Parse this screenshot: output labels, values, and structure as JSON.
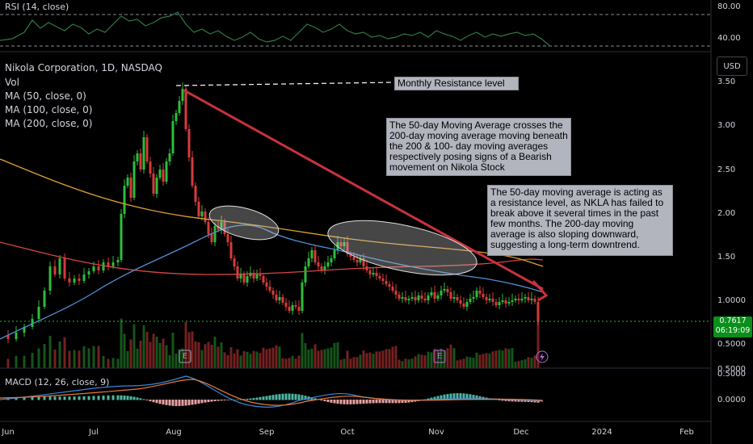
{
  "rsi": {
    "label": "RSI (14, close)",
    "ticks": [
      "80.00",
      "40.00"
    ]
  },
  "main": {
    "title": "Nikola Corporation, 1D, NASDAQ",
    "legend": [
      "Vol",
      "MA (50, close, 0)",
      "MA (100, close, 0)",
      "MA (200, close, 0)"
    ],
    "price_ticks": [
      "3.50",
      "3.00",
      "2.50",
      "2.00",
      "1.50",
      "1.0000",
      "0.5000"
    ],
    "currency": "USD",
    "last_price": "0.7617",
    "countdown": "06:19:09",
    "event_markers": [
      "E",
      "E"
    ]
  },
  "annotations": {
    "resistance": "Monthly Resistance level",
    "ma_cross": "The 50-day Moving Average crosses the 200-day moving average moving beneath the 200 & 100- day moving averages respectively posing signs of a Bearish movement on Nikola Stock",
    "ma_resist": "The 50-day moving average is acting as a resistance level, as NKLA has failed to break above it several times in the past few months. The 200-day moving average is also sloping downward, suggesting a long-term downtrend."
  },
  "macd": {
    "label": "MACD (12, 26, close, 9)",
    "ticks": [
      "0.5000",
      "0.0000"
    ]
  },
  "xaxis": [
    "Jun",
    "Jul",
    "Aug",
    "Sep",
    "Oct",
    "Nov",
    "Dec",
    "2024",
    "Feb"
  ],
  "colors": {
    "up": "#2ebd3a",
    "down": "#d63b3b",
    "rsi": "#2f7a45",
    "ma50": "#4e8fd6",
    "ma100": "#e0a030",
    "ma200": "#d64545",
    "trendline": "#c8323c",
    "macd": "#3d86d8",
    "signal": "#e8793a"
  }
}
